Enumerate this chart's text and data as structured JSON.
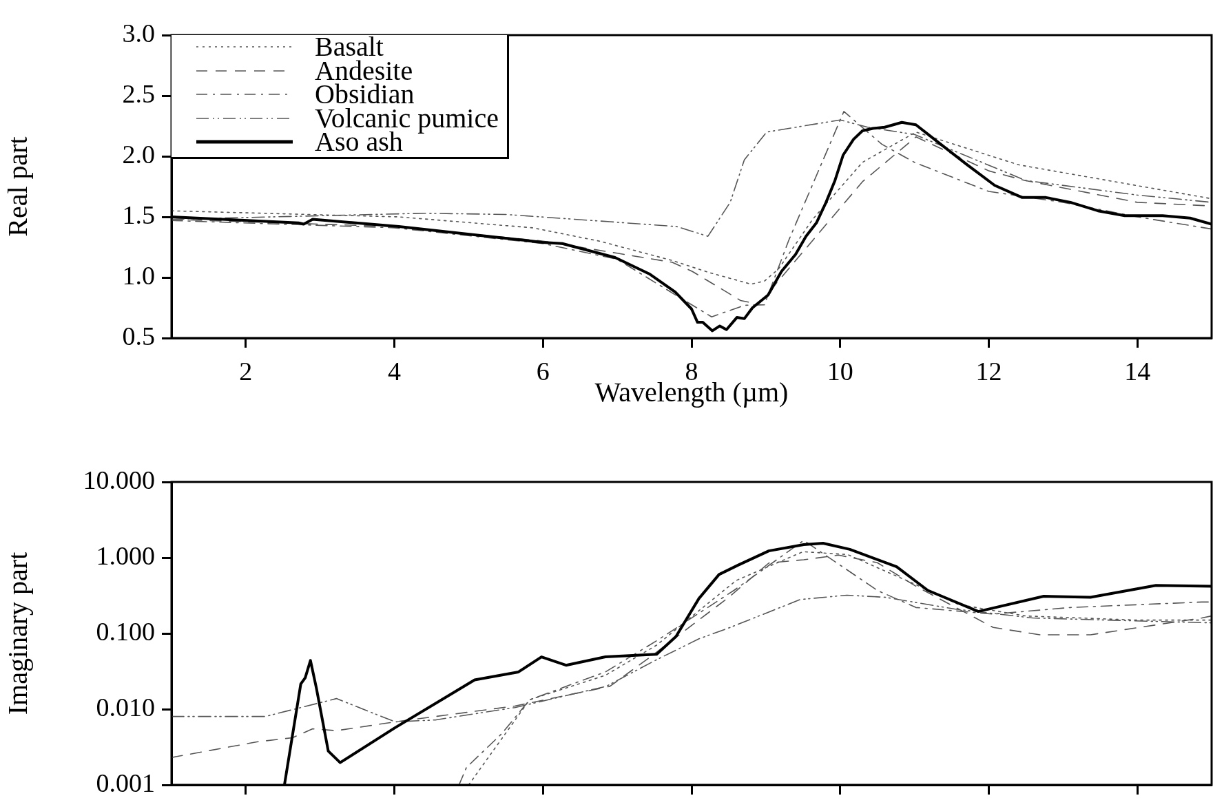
{
  "chart_data": [
    {
      "type": "line",
      "xlabel": "Wavelength (µm)",
      "ylabel": "Real part",
      "xlim": [
        1,
        15
      ],
      "xticks": [
        2,
        4,
        6,
        8,
        10,
        12,
        14
      ],
      "ylim": [
        0.5,
        3.0
      ],
      "yticks": [
        {
          "value": 0.5,
          "label": "0.5"
        },
        {
          "value": 1.0,
          "label": "1.0"
        },
        {
          "value": 1.5,
          "label": "1.5"
        },
        {
          "value": 2.0,
          "label": "2.0"
        },
        {
          "value": 2.5,
          "label": "2.5"
        },
        {
          "value": 3.0,
          "label": "3.0"
        }
      ],
      "legend": "top left",
      "grid": false,
      "series": [
        {
          "name": "Basalt",
          "color": "#555555",
          "line_style": "dotted",
          "x": [
            1,
            4.06,
            5.86,
            6.76,
            7.74,
            8.24,
            8.8,
            8.98,
            9.17,
            9.63,
            10.3,
            11.02,
            12.4,
            15
          ],
          "values": [
            1.55,
            1.5,
            1.41,
            1.3,
            1.14,
            1.04,
            0.945,
            0.97,
            1.07,
            1.48,
            1.95,
            2.2,
            1.93,
            1.65
          ]
        },
        {
          "name": "Andesite",
          "color": "#555555",
          "line_style": "dashed",
          "x": [
            1,
            4,
            6,
            7,
            7.74,
            8.01,
            8.66,
            8.9,
            9.0,
            10.3,
            11.02,
            12.0,
            12.49,
            14,
            15
          ],
          "values": [
            1.48,
            1.42,
            1.3,
            1.2,
            1.125,
            1.05,
            0.81,
            0.78,
            0.85,
            1.79,
            2.16,
            1.88,
            1.8,
            1.62,
            1.59
          ]
        },
        {
          "name": "Obsidian",
          "color": "#555555",
          "line_style": "dashed",
          "x": [
            1,
            4,
            6,
            7,
            7.8,
            8.27,
            8.71,
            8.98,
            9.31,
            10.05,
            10.56,
            11.0,
            12.0,
            13,
            14,
            15
          ],
          "values": [
            1.47,
            1.41,
            1.28,
            1.15,
            0.85,
            0.675,
            0.77,
            0.775,
            1.31,
            2.37,
            2.1,
            1.95,
            1.71,
            1.62,
            1.5,
            1.4
          ]
        },
        {
          "name": "Volcanic pumice",
          "color": "#555555",
          "line_style": "dashed",
          "x": [
            1,
            4.4,
            5.5,
            6.9,
            7.8,
            8.22,
            8.52,
            8.71,
            9.01,
            10.0,
            10.37,
            11.0,
            12.5,
            14,
            15
          ],
          "values": [
            1.48,
            1.53,
            1.52,
            1.46,
            1.42,
            1.34,
            1.62,
            1.97,
            2.2,
            2.3,
            2.24,
            2.18,
            1.8,
            1.68,
            1.62
          ]
        },
        {
          "name": "Aso ash",
          "color": "#000000",
          "line_style": "solid",
          "x": [
            1,
            2.71,
            2.78,
            2.9,
            4.06,
            5.41,
            5.99,
            6.26,
            6.97,
            7.43,
            7.78,
            8.0,
            8.08,
            8.15,
            8.28,
            8.38,
            8.47,
            8.61,
            8.71,
            8.82,
            9.03,
            9.21,
            9.4,
            9.54,
            9.68,
            9.81,
            9.93,
            10.04,
            10.18,
            10.3,
            10.44,
            10.6,
            10.83,
            11.02,
            11.29,
            11.71,
            12.08,
            12.45,
            12.77,
            13.1,
            13.47,
            13.83,
            14.34,
            14.71,
            15
          ],
          "values": [
            1.5,
            1.45,
            1.44,
            1.48,
            1.42,
            1.33,
            1.29,
            1.28,
            1.165,
            1.03,
            0.88,
            0.74,
            0.63,
            0.63,
            0.56,
            0.6,
            0.57,
            0.67,
            0.66,
            0.75,
            0.855,
            1.05,
            1.19,
            1.34,
            1.45,
            1.62,
            1.8,
            2.01,
            2.14,
            2.21,
            2.23,
            2.24,
            2.28,
            2.26,
            2.13,
            1.93,
            1.76,
            1.66,
            1.66,
            1.62,
            1.55,
            1.51,
            1.51,
            1.49,
            1.44
          ]
        }
      ]
    },
    {
      "type": "line",
      "ylabel": "Imaginary part",
      "log": "y",
      "xlim": [
        1,
        15
      ],
      "xticks": [
        2,
        4,
        6,
        8,
        10,
        12,
        14
      ],
      "ylim": [
        0.001,
        10
      ],
      "yticks": [
        {
          "value": 0.001,
          "label": "0.001"
        },
        {
          "value": 0.01,
          "label": "0.010"
        },
        {
          "value": 0.1,
          "label": "0.100"
        },
        {
          "value": 1,
          "label": "1.000"
        },
        {
          "value": 10,
          "label": "10.000"
        }
      ],
      "tick_labels": "y",
      "grid": false,
      "series": [
        {
          "color": "#555555",
          "line_style": "dotted",
          "x": [
            5.0,
            5.82,
            6.84,
            7.53,
            8.1,
            8.6,
            9.5,
            10.1,
            11.0,
            11.6,
            12.5,
            14,
            15
          ],
          "values": [
            0.001,
            0.0133,
            0.028,
            0.07,
            0.2,
            0.5,
            1.2,
            1.1,
            0.45,
            0.24,
            0.17,
            0.15,
            0.15
          ]
        },
        {
          "color": "#555555",
          "line_style": "dashed",
          "x": [
            1,
            2.15,
            2.63,
            2.9,
            3.22,
            4.01,
            5.62,
            6.9,
            7.42,
            8.5,
            9.04,
            9.51,
            9.98,
            10.5,
            11.02,
            12.06,
            12.69,
            13.37,
            14.87,
            15
          ],
          "values": [
            0.0023,
            0.0037,
            0.0042,
            0.0055,
            0.0052,
            0.0068,
            0.011,
            0.02,
            0.047,
            0.3,
            0.85,
            0.94,
            1.08,
            0.86,
            0.42,
            0.12,
            0.096,
            0.096,
            0.16,
            0.17
          ]
        },
        {
          "color": "#555555",
          "line_style": "dashed",
          "x": [
            4.87,
            4.97,
            5.45,
            5.82,
            6.84,
            7.53,
            8.57,
            9.51,
            10.5,
            11.02,
            12.06,
            13.1,
            14.87,
            15
          ],
          "values": [
            0.001,
            0.0017,
            0.0048,
            0.0133,
            0.031,
            0.08,
            0.37,
            1.69,
            0.37,
            0.22,
            0.18,
            0.22,
            0.26,
            0.26
          ]
        },
        {
          "color": "#555555",
          "line_style": "dashed",
          "x": [
            1,
            2.26,
            3.22,
            4.01,
            4.55,
            5.62,
            6.85,
            7.53,
            8.1,
            8.52,
            9.46,
            10.09,
            10.61,
            11.54,
            12.59,
            14.15,
            15
          ],
          "values": [
            0.008,
            0.008,
            0.0138,
            0.0068,
            0.0072,
            0.0105,
            0.02,
            0.045,
            0.085,
            0.12,
            0.28,
            0.32,
            0.3,
            0.21,
            0.16,
            0.145,
            0.138
          ]
        },
        {
          "color": "#000000",
          "line_style": "solid",
          "x": [
            2.52,
            2.74,
            2.8,
            2.87,
            2.95,
            3.11,
            3.27,
            4.01,
            5.08,
            5.67,
            5.98,
            6.31,
            6.84,
            7.53,
            7.79,
            8.1,
            8.37,
            8.63,
            9.04,
            9.51,
            9.77,
            10.13,
            10.76,
            11.18,
            11.86,
            12.74,
            13.37,
            14.25,
            15
          ],
          "values": [
            0.001,
            0.0215,
            0.026,
            0.044,
            0.019,
            0.0028,
            0.00197,
            0.0057,
            0.0243,
            0.031,
            0.049,
            0.038,
            0.049,
            0.053,
            0.091,
            0.29,
            0.6,
            0.8,
            1.23,
            1.49,
            1.55,
            1.29,
            0.76,
            0.37,
            0.195,
            0.31,
            0.3,
            0.43,
            0.42
          ]
        }
      ]
    }
  ]
}
